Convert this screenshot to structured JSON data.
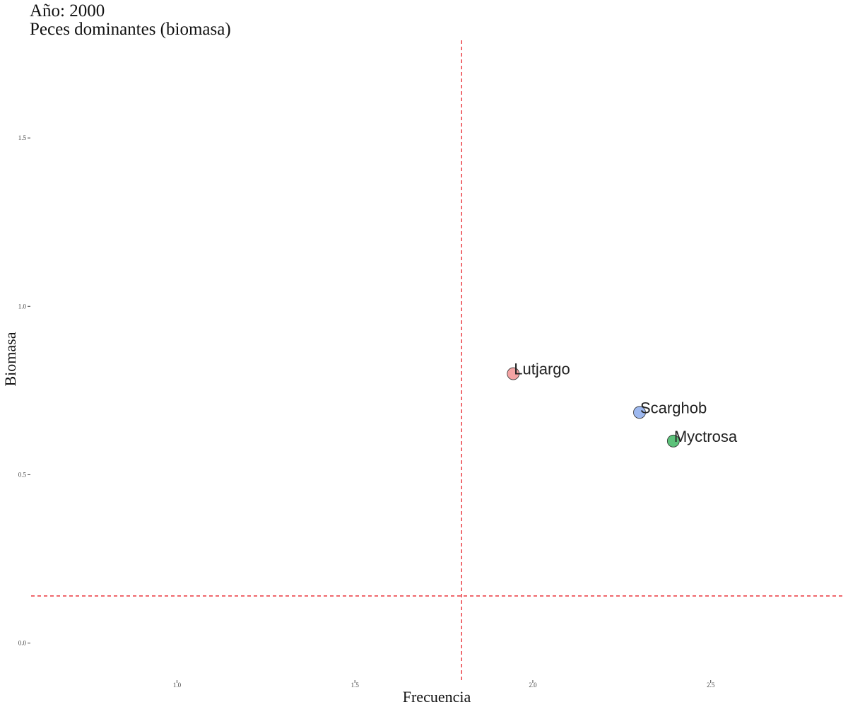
{
  "chart_data": {
    "type": "scatter",
    "title": "Año: 2000",
    "subtitle": "Peces dominantes (biomasa)",
    "xlabel": "Frecuencia",
    "ylabel": "Biomasa",
    "xlim": [
      0.59,
      2.87
    ],
    "ylim": [
      -0.11,
      1.79
    ],
    "x_ticks": [
      1.0,
      1.5,
      2.0,
      2.5
    ],
    "x_tick_labels": [
      "1.0",
      "1.5",
      "2.0",
      "2.5"
    ],
    "y_ticks": [
      0.0,
      0.5,
      1.0,
      1.5
    ],
    "y_tick_labels": [
      "0.0",
      "0.5",
      "1.0",
      "1.5"
    ],
    "grid": false,
    "legend": "none",
    "reference_lines": {
      "color": "#e8242b",
      "style": "dashed",
      "vertical_x": 1.8,
      "horizontal_y": 0.14
    },
    "points": [
      {
        "label": "Lutjargo",
        "x": 1.945,
        "y": 0.8,
        "color": "#f4a3a3"
      },
      {
        "label": "Scarghob",
        "x": 2.3,
        "y": 0.685,
        "color": "#9db8ef"
      },
      {
        "label": "Myctrosa",
        "x": 2.395,
        "y": 0.6,
        "color": "#5cc27a"
      }
    ]
  }
}
